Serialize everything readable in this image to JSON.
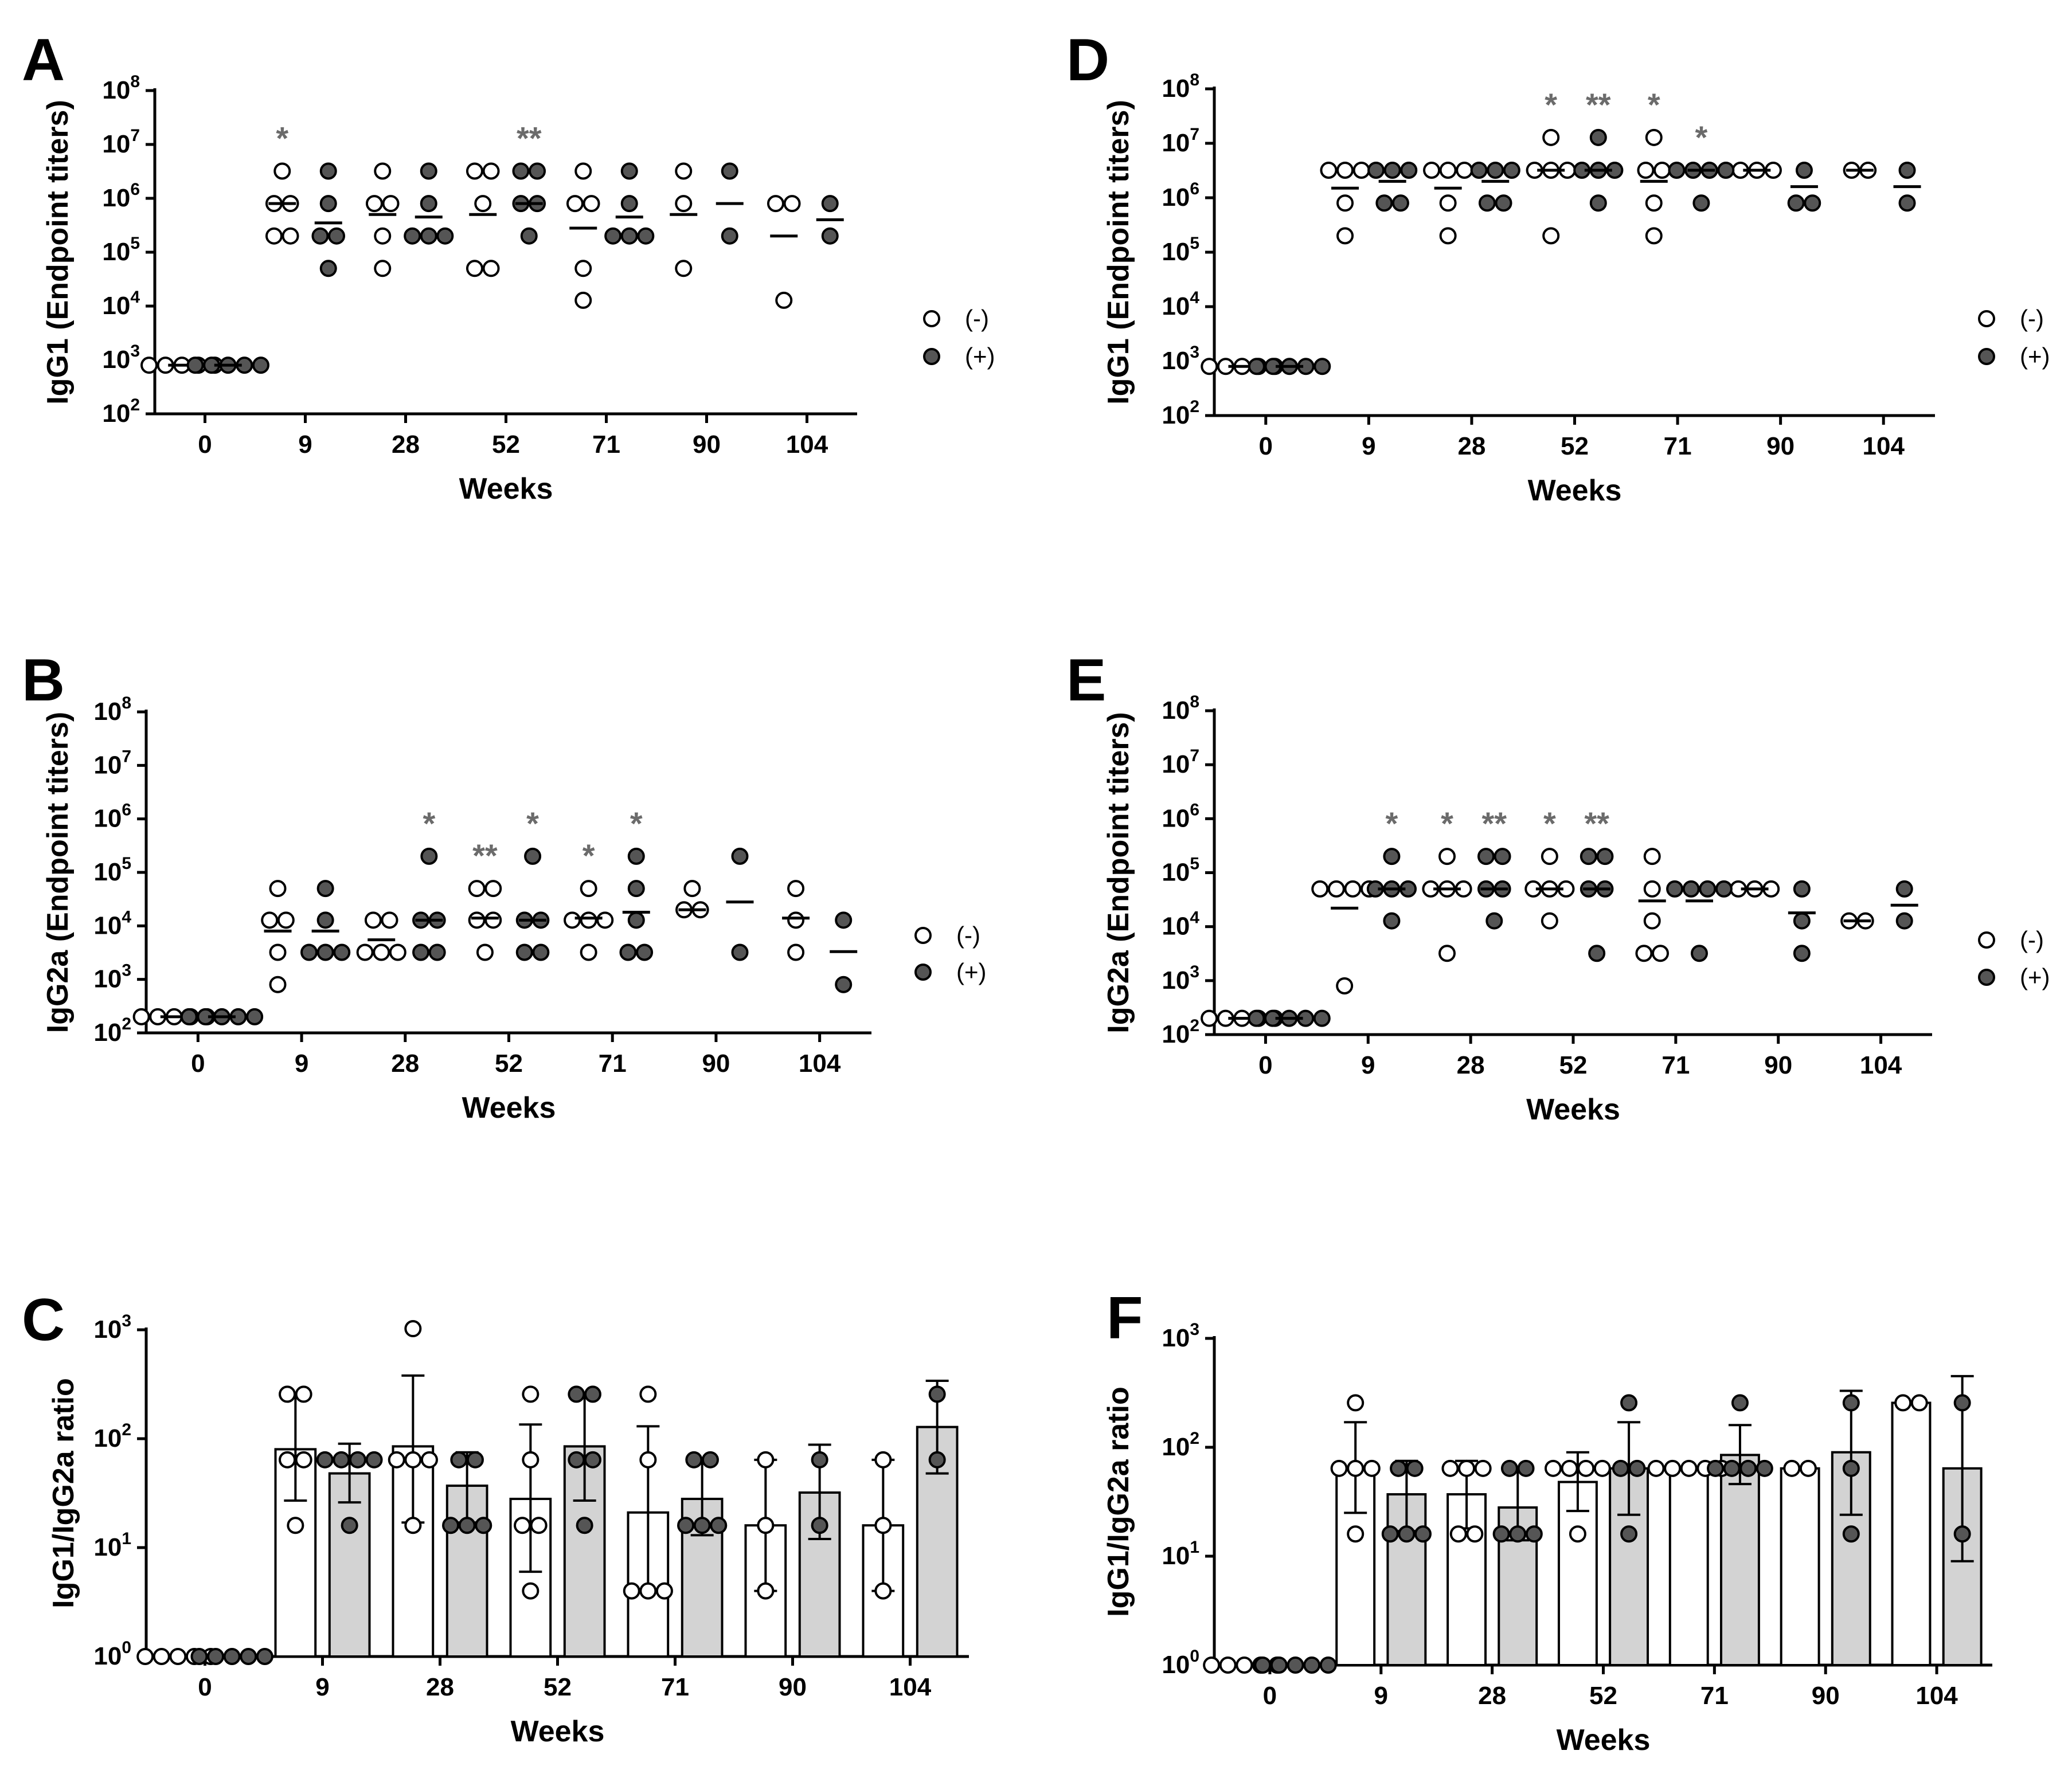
{
  "colors": {
    "open": "#ffffff",
    "filled": "#555555",
    "bar_filled": "#d3d3d3",
    "sig": "#6b6b6b",
    "line": "#000000"
  },
  "legend": {
    "minus": "(-)",
    "plus": "(+)"
  },
  "chart_data": [
    {
      "id": "A",
      "type": "scatter",
      "letter": "A",
      "ylabel": "IgG1 (Endpoint titers)",
      "xlabel": "Weeks",
      "categories": [
        "0",
        "9",
        "28",
        "52",
        "71",
        "90",
        "104"
      ],
      "ylim_exp": [
        2,
        8
      ],
      "ytick_exps": [
        2,
        3,
        4,
        5,
        6,
        7,
        8
      ],
      "series": [
        {
          "name": "(-)",
          "style": "open",
          "points": [
            [
              800,
              800,
              800,
              800,
              800
            ],
            [
              3200000,
              800000,
              800000,
              200000,
              200000
            ],
            [
              3200000,
              800000,
              800000,
              200000,
              50000
            ],
            [
              3200000,
              3200000,
              800000,
              50000,
              50000
            ],
            [
              3200000,
              800000,
              800000,
              50000,
              12800
            ],
            [
              3200000,
              800000,
              50000
            ],
            [
              800000,
              800000,
              12800
            ]
          ],
          "medians": [
            800,
            800000,
            500000,
            500000,
            280000,
            500000,
            200000
          ]
        },
        {
          "name": "(+)",
          "style": "filled",
          "points": [
            [
              800,
              800,
              800,
              800,
              800
            ],
            [
              3200000,
              800000,
              200000,
              200000,
              50000
            ],
            [
              3200000,
              800000,
              200000,
              200000,
              200000
            ],
            [
              3200000,
              3200000,
              800000,
              800000,
              200000
            ],
            [
              3200000,
              800000,
              200000,
              200000,
              200000
            ],
            [
              3200000,
              200000
            ],
            [
              800000,
              200000
            ]
          ],
          "medians": [
            800,
            350000,
            450000,
            800000,
            450000,
            800000,
            400000
          ]
        }
      ],
      "significance": [
        {
          "category": "9",
          "series": "(-)",
          "label": "*"
        },
        {
          "category": "52",
          "series": "(+)",
          "label": "**"
        }
      ]
    },
    {
      "id": "B",
      "type": "scatter",
      "letter": "B",
      "ylabel": "IgG2a (Endpoint titers)",
      "xlabel": "Weeks",
      "categories": [
        "0",
        "9",
        "28",
        "52",
        "71",
        "90",
        "104"
      ],
      "ylim_exp": [
        2,
        8
      ],
      "ytick_exps": [
        2,
        3,
        4,
        5,
        6,
        7,
        8
      ],
      "series": [
        {
          "name": "(-)",
          "style": "open",
          "points": [
            [
              200,
              200,
              200,
              200,
              200
            ],
            [
              50000,
              12800,
              12800,
              3200,
              800
            ],
            [
              12800,
              12800,
              3200,
              3200,
              3200
            ],
            [
              50000,
              50000,
              12800,
              12800,
              3200
            ],
            [
              50000,
              12800,
              12800,
              12800,
              3200
            ],
            [
              50000,
              20000,
              20000
            ],
            [
              50000,
              12800,
              3200
            ]
          ],
          "medians": [
            200,
            8000,
            5500,
            14000,
            14000,
            20000,
            14000
          ]
        },
        {
          "name": "(+)",
          "style": "filled",
          "points": [
            [
              200,
              200,
              200,
              200,
              200
            ],
            [
              50000,
              12800,
              3200,
              3200,
              3200
            ],
            [
              200000,
              12800,
              12800,
              3200,
              3200
            ],
            [
              200000,
              12800,
              12800,
              3200,
              3200
            ],
            [
              200000,
              50000,
              12800,
              3200,
              3200
            ],
            [
              200000,
              3200
            ],
            [
              12800,
              800
            ]
          ],
          "medians": [
            200,
            8000,
            12800,
            12800,
            18000,
            28000,
            3300
          ]
        }
      ],
      "significance": [
        {
          "category": "28",
          "series": "(+)",
          "label": "*"
        },
        {
          "category": "52",
          "series": "(-)",
          "label": "**"
        },
        {
          "category": "52",
          "series": "(+)",
          "label": "*"
        },
        {
          "category": "71",
          "series": "(-)",
          "label": "*"
        },
        {
          "category": "71",
          "series": "(+)",
          "label": "*"
        }
      ]
    },
    {
      "id": "C",
      "type": "bar",
      "letter": "C",
      "ylabel": "IgG1/IgG2a ratio",
      "xlabel": "Weeks",
      "categories": [
        "0",
        "9",
        "28",
        "52",
        "71",
        "90",
        "104"
      ],
      "ylim_exp": [
        0,
        3
      ],
      "ytick_exps": [
        0,
        1,
        2,
        3
      ],
      "series": [
        {
          "name": "(-)",
          "style": "open",
          "values": [
            1,
            80,
            85,
            28,
            21,
            16,
            16
          ],
          "err_low": [
            1,
            27,
            17,
            6,
            4,
            4,
            4
          ],
          "err_high": [
            1,
            250,
            380,
            135,
            130,
            64,
            64
          ],
          "points": [
            [
              1,
              1,
              1,
              1,
              1
            ],
            [
              256,
              256,
              64,
              64,
              16
            ],
            [
              1024,
              64,
              64,
              64,
              16
            ],
            [
              256,
              64,
              16,
              16,
              4
            ],
            [
              256,
              64,
              4,
              4,
              4
            ],
            [
              64,
              16,
              4
            ],
            [
              64,
              16,
              4
            ]
          ]
        },
        {
          "name": "(+)",
          "style": "filled",
          "values": [
            1,
            48,
            37,
            85,
            28,
            32,
            128
          ],
          "err_low": [
            1,
            26,
            17,
            27,
            13,
            12,
            48
          ],
          "err_high": [
            1,
            90,
            75,
            256,
            64,
            88,
            340
          ],
          "points": [
            [
              1,
              1,
              1,
              1,
              1
            ],
            [
              64,
              64,
              64,
              64,
              16
            ],
            [
              64,
              64,
              16,
              16,
              16
            ],
            [
              256,
              256,
              64,
              64,
              16
            ],
            [
              64,
              64,
              16,
              16,
              16
            ],
            [
              64,
              16
            ],
            [
              256,
              64
            ]
          ]
        }
      ]
    },
    {
      "id": "D",
      "type": "scatter",
      "letter": "D",
      "ylabel": "IgG1 (Endpoint titers)",
      "xlabel": "Weeks",
      "categories": [
        "0",
        "9",
        "28",
        "52",
        "71",
        "90",
        "104"
      ],
      "ylim_exp": [
        2,
        8
      ],
      "ytick_exps": [
        2,
        3,
        4,
        5,
        6,
        7,
        8
      ],
      "series": [
        {
          "name": "(-)",
          "style": "open",
          "points": [
            [
              800,
              800,
              800,
              800,
              800
            ],
            [
              3200000,
              3200000,
              3200000,
              800000,
              200000
            ],
            [
              3200000,
              3200000,
              3200000,
              800000,
              200000
            ],
            [
              12800000,
              3200000,
              3200000,
              3200000,
              200000
            ],
            [
              12800000,
              3200000,
              3200000,
              800000,
              200000
            ],
            [
              3200000,
              3200000,
              3200000
            ],
            [
              3200000,
              3200000
            ]
          ],
          "medians": [
            800,
            1500000,
            1500000,
            3200000,
            2000000,
            3200000,
            3200000
          ]
        },
        {
          "name": "(+)",
          "style": "filled",
          "points": [
            [
              800,
              800,
              800,
              800,
              800
            ],
            [
              3200000,
              3200000,
              3200000,
              800000,
              800000
            ],
            [
              3200000,
              3200000,
              3200000,
              800000,
              800000
            ],
            [
              12800000,
              3200000,
              3200000,
              3200000,
              800000
            ],
            [
              3200000,
              3200000,
              3200000,
              3200000,
              800000
            ],
            [
              3200000,
              800000,
              800000
            ],
            [
              3200000,
              800000
            ]
          ],
          "medians": [
            800,
            2000000,
            2000000,
            3200000,
            3200000,
            1600000,
            1600000
          ]
        }
      ],
      "significance": [
        {
          "category": "52",
          "series": "(-)",
          "label": "*"
        },
        {
          "category": "52",
          "series": "(+)",
          "label": "**"
        },
        {
          "category": "71",
          "series": "(-)",
          "label": "*"
        },
        {
          "category": "71",
          "series": "(+)",
          "label": "*"
        }
      ]
    },
    {
      "id": "E",
      "type": "scatter",
      "letter": "E",
      "ylabel": "IgG2a (Endpoint titers)",
      "xlabel": "Weeks",
      "categories": [
        "0",
        "9",
        "28",
        "52",
        "71",
        "90",
        "104"
      ],
      "ylim_exp": [
        2,
        8
      ],
      "ytick_exps": [
        2,
        3,
        4,
        5,
        6,
        7,
        8
      ],
      "series": [
        {
          "name": "(-)",
          "style": "open",
          "points": [
            [
              200,
              200,
              200,
              200,
              200
            ],
            [
              50000,
              50000,
              50000,
              50000,
              800
            ],
            [
              200000,
              50000,
              50000,
              50000,
              3200
            ],
            [
              200000,
              50000,
              50000,
              50000,
              12800
            ],
            [
              200000,
              50000,
              12800,
              3200,
              3200
            ],
            [
              50000,
              50000,
              50000
            ],
            [
              12800,
              12800
            ]
          ],
          "medians": [
            200,
            22000,
            50000,
            50000,
            30000,
            50000,
            12800
          ]
        },
        {
          "name": "(+)",
          "style": "filled",
          "points": [
            [
              200,
              200,
              200,
              200,
              200
            ],
            [
              200000,
              50000,
              50000,
              50000,
              12800
            ],
            [
              200000,
              200000,
              50000,
              50000,
              12800
            ],
            [
              200000,
              200000,
              50000,
              50000,
              3200
            ],
            [
              50000,
              50000,
              50000,
              50000,
              3200
            ],
            [
              50000,
              12800,
              3200
            ],
            [
              50000,
              12800
            ]
          ],
          "medians": [
            200,
            50000,
            50000,
            50000,
            30000,
            18000,
            25000
          ]
        }
      ],
      "significance": [
        {
          "category": "9",
          "series": "(+)",
          "label": "*"
        },
        {
          "category": "28",
          "series": "(-)",
          "label": "*"
        },
        {
          "category": "28",
          "series": "(+)",
          "label": "**"
        },
        {
          "category": "52",
          "series": "(-)",
          "label": "*"
        },
        {
          "category": "52",
          "series": "(+)",
          "label": "**"
        }
      ]
    },
    {
      "id": "F",
      "type": "bar",
      "letter": "F",
      "ylabel": "IgG1/IgG2a ratio",
      "xlabel": "Weeks",
      "categories": [
        "0",
        "9",
        "28",
        "52",
        "71",
        "90",
        "104"
      ],
      "ylim_exp": [
        0,
        3
      ],
      "ytick_exps": [
        0,
        1,
        2,
        3
      ],
      "series": [
        {
          "name": "(-)",
          "style": "open",
          "values": [
            1,
            64,
            37,
            48,
            64,
            64,
            256
          ],
          "err_low": [
            1,
            25,
            18,
            26,
            64,
            64,
            256
          ],
          "err_high": [
            1,
            170,
            75,
            90,
            64,
            64,
            256
          ],
          "points": [
            [
              1,
              1,
              1,
              1,
              1
            ],
            [
              256,
              64,
              64,
              64,
              16
            ],
            [
              64,
              64,
              64,
              16,
              16
            ],
            [
              64,
              64,
              64,
              64,
              16
            ],
            [
              64,
              64,
              64,
              64,
              64
            ],
            [
              64,
              64
            ],
            [
              256,
              256
            ]
          ]
        },
        {
          "name": "(+)",
          "style": "filled",
          "values": [
            1,
            37,
            28,
            64,
            85,
            90,
            64
          ],
          "err_low": [
            1,
            17,
            14,
            24,
            46,
            24,
            9
          ],
          "err_high": [
            1,
            75,
            64,
            170,
            160,
            330,
            450
          ],
          "points": [
            [
              1,
              1,
              1,
              1,
              1
            ],
            [
              64,
              64,
              16,
              16,
              16
            ],
            [
              64,
              64,
              16,
              16,
              16
            ],
            [
              256,
              64,
              64,
              16
            ],
            [
              256,
              64,
              64,
              64,
              64
            ],
            [
              256,
              64,
              16
            ],
            [
              256,
              16
            ]
          ]
        }
      ]
    }
  ]
}
